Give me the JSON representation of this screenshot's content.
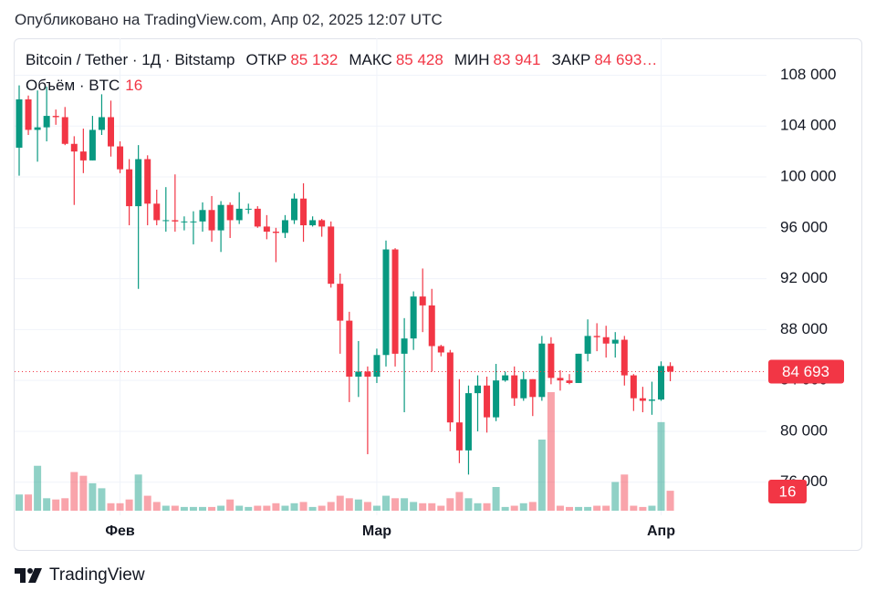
{
  "chart_data": {
    "type": "candlestick",
    "published": "Опубликовано на TradingView.com, Апр 02, 2025 12:07 UTC",
    "symbol": "Bitcoin / Tether · 1Д · Bitstamp",
    "ohlc_legend": [
      {
        "label": "ОТКР",
        "value": "85 132"
      },
      {
        "label": "МАКС",
        "value": "85 428"
      },
      {
        "label": "МИН",
        "value": "83 941"
      },
      {
        "label": "ЗАКР",
        "value": "84 693…"
      }
    ],
    "volume_title": "Объём · BTC",
    "volume_legend_value": "16",
    "volume_badge": "16",
    "brand": "TradingView",
    "categories": [
      null,
      null,
      null,
      null,
      null,
      null,
      null,
      null,
      null,
      null,
      null,
      "Фев",
      null,
      null,
      null,
      null,
      null,
      null,
      null,
      null,
      null,
      null,
      null,
      null,
      null,
      null,
      null,
      null,
      null,
      null,
      null,
      null,
      null,
      null,
      null,
      null,
      null,
      null,
      null,
      "Мар",
      null,
      null,
      null,
      null,
      null,
      null,
      null,
      null,
      null,
      null,
      null,
      null,
      null,
      null,
      null,
      null,
      null,
      null,
      null,
      null,
      null,
      null,
      null,
      null,
      null,
      null,
      null,
      null,
      null,
      null,
      "Апр",
      null
    ],
    "open": [
      102300,
      106100,
      103700,
      103900,
      104800,
      104700,
      102600,
      102000,
      101300,
      103700,
      104700,
      102400,
      100600,
      97700,
      101400,
      97900,
      96600,
      96600,
      96500,
      96500,
      96500,
      97400,
      95800,
      97800,
      96600,
      97500,
      97500,
      96100,
      95700,
      95600,
      96600,
      98300,
      96200,
      96600,
      96100,
      91600,
      88700,
      84300,
      84700,
      84300,
      86000,
      94300,
      86100,
      87300,
      90600,
      89900,
      86700,
      86200,
      80700,
      78500,
      83000,
      83600,
      81100,
      84000,
      84400,
      82600,
      84100,
      82700,
      86900,
      84200,
      84000,
      83800,
      86100,
      87500,
      87400,
      86900,
      87200,
      84400,
      82600,
      82400,
      82500,
      85132
    ],
    "high": [
      107200,
      106400,
      106800,
      107100,
      105300,
      105500,
      103200,
      103800,
      104800,
      106500,
      106000,
      102800,
      101400,
      102500,
      101700,
      99000,
      99200,
      100200,
      96900,
      97300,
      98000,
      98500,
      98100,
      98000,
      98800,
      97900,
      97700,
      97000,
      96000,
      97000,
      98700,
      99500,
      96900,
      96700,
      96500,
      92400,
      89400,
      87100,
      85100,
      86500,
      95000,
      94400,
      88900,
      91000,
      92800,
      91200,
      86800,
      86400,
      84100,
      83600,
      84400,
      84300,
      85300,
      84700,
      85100,
      84700,
      84100,
      87500,
      87400,
      84800,
      84500,
      86100,
      88800,
      88500,
      88300,
      87800,
      87500,
      84500,
      83500,
      83900,
      85500,
      85428
    ],
    "low": [
      100100,
      103300,
      101200,
      102800,
      104100,
      102500,
      97800,
      100300,
      101300,
      103300,
      101600,
      100300,
      96200,
      91200,
      96200,
      96200,
      95700,
      95700,
      95800,
      94700,
      95700,
      94900,
      94100,
      95200,
      96300,
      97100,
      96000,
      95100,
      93300,
      95200,
      96300,
      94900,
      96100,
      95300,
      91300,
      86100,
      82300,
      82700,
      78200,
      83800,
      85100,
      85100,
      81500,
      86400,
      87800,
      84700,
      85900,
      80000,
      77500,
      76600,
      80000,
      79900,
      80800,
      83900,
      82000,
      82400,
      81200,
      82400,
      83700,
      83200,
      83700,
      83800,
      85500,
      86300,
      85800,
      85800,
      83600,
      81600,
      81500,
      81300,
      82400,
      83941
    ],
    "close": [
      106100,
      103700,
      103900,
      104800,
      104700,
      102600,
      102000,
      101300,
      103700,
      104700,
      102400,
      100600,
      97700,
      101400,
      97900,
      96600,
      96600,
      96500,
      96500,
      96500,
      97400,
      95800,
      97800,
      96600,
      97500,
      97500,
      96100,
      95700,
      95600,
      96600,
      98300,
      96200,
      96600,
      96100,
      91600,
      88700,
      84300,
      84700,
      84300,
      86000,
      94300,
      86100,
      87300,
      90600,
      89900,
      86700,
      86200,
      80700,
      78500,
      83000,
      83600,
      81100,
      84000,
      84400,
      82600,
      84100,
      82700,
      86900,
      84200,
      84000,
      83800,
      86100,
      87500,
      87400,
      86900,
      87200,
      84400,
      82600,
      82400,
      82500,
      85132,
      84693
    ],
    "volume": [
      13,
      13,
      36,
      10,
      9,
      10,
      31,
      28,
      22,
      18,
      6,
      6,
      9,
      29,
      12,
      7,
      4,
      4,
      3,
      3,
      3,
      3,
      4,
      9,
      4,
      3,
      4,
      4,
      6,
      4,
      6,
      7,
      3,
      4,
      7,
      12,
      10,
      9,
      7,
      4,
      12,
      10,
      10,
      7,
      6,
      6,
      4,
      10,
      15,
      10,
      6,
      6,
      19,
      3,
      4,
      6,
      7,
      57,
      95,
      4,
      3,
      3,
      3,
      4,
      4,
      23,
      29,
      4,
      3,
      4,
      71,
      16
    ],
    "up_color": "#089981",
    "down_color": "#f23645",
    "ylim": [
      73400,
      110900
    ],
    "yticks": [
      {
        "value": 76000,
        "label": "76 000"
      },
      {
        "value": 80000,
        "label": "80 000"
      },
      {
        "value": 84000,
        "label": "84 000"
      },
      {
        "value": 88000,
        "label": "88 000"
      },
      {
        "value": 92000,
        "label": "92 000"
      },
      {
        "value": 96000,
        "label": "96 000"
      },
      {
        "value": 100000,
        "label": "100 000"
      },
      {
        "value": 104000,
        "label": "104 000"
      },
      {
        "value": 108000,
        "label": "108 000"
      }
    ],
    "price_line": {
      "value": 84693,
      "label": "84 693"
    },
    "grid": true
  }
}
